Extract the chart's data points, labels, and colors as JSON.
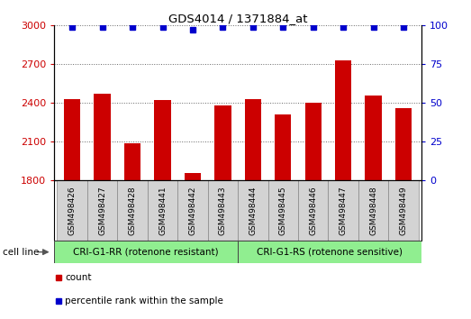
{
  "title": "GDS4014 / 1371884_at",
  "samples": [
    "GSM498426",
    "GSM498427",
    "GSM498428",
    "GSM498441",
    "GSM498442",
    "GSM498443",
    "GSM498444",
    "GSM498445",
    "GSM498446",
    "GSM498447",
    "GSM498448",
    "GSM498449"
  ],
  "counts": [
    2430,
    2470,
    2090,
    2420,
    1855,
    2380,
    2430,
    2310,
    2400,
    2730,
    2455,
    2360
  ],
  "percentile_ranks": [
    99,
    99,
    99,
    99,
    97,
    99,
    99,
    99,
    99,
    99,
    99,
    99
  ],
  "bar_color": "#cc0000",
  "dot_color": "#0000cc",
  "ylim_left": [
    1800,
    3000
  ],
  "ylim_right": [
    0,
    100
  ],
  "yticks_left": [
    1800,
    2100,
    2400,
    2700,
    3000
  ],
  "yticks_right": [
    0,
    25,
    50,
    75,
    100
  ],
  "group1_label": "CRI-G1-RR (rotenone resistant)",
  "group2_label": "CRI-G1-RS (rotenone sensitive)",
  "group1_count": 6,
  "group2_count": 6,
  "cell_line_label": "cell line",
  "legend_count_label": "count",
  "legend_percentile_label": "percentile rank within the sample",
  "group_bg_color": "#90ee90",
  "tick_label_bg": "#d3d3d3",
  "bar_width": 0.55
}
